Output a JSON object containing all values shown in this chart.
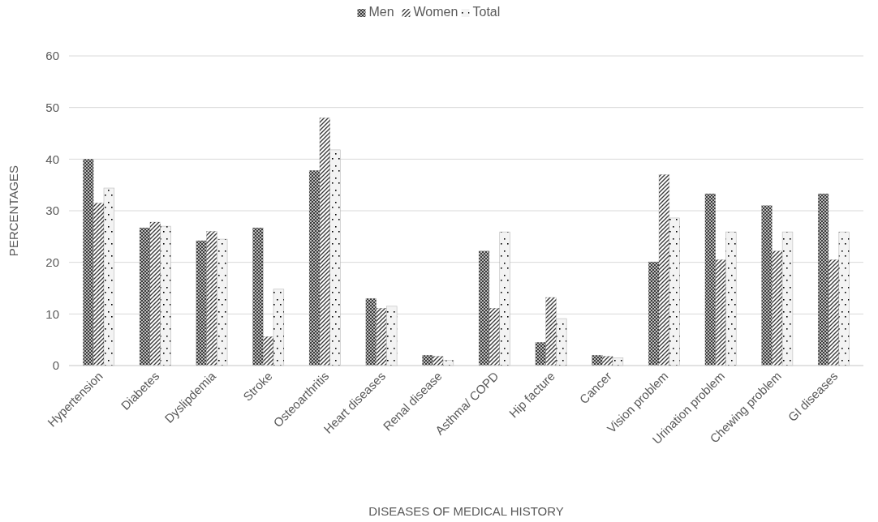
{
  "chart_data": {
    "type": "bar",
    "xlabel": "DISEASES OF MEDICAL HISTORY",
    "ylabel": "PERCENTAGES",
    "categories": [
      "Hypertension",
      "Diabetes",
      "Dyslipdemia",
      "Stroke",
      "Osteoarthritis",
      "Heart diseases",
      "Renal disease",
      "Asthma/ COPD",
      "Hip facture",
      "Cancer",
      "Vision problem",
      "Urination problem",
      "Chewing problem",
      "GI diseases"
    ],
    "series": [
      {
        "name": "Men",
        "color": "#3a3a3a",
        "values": [
          40,
          26.7,
          24.2,
          26.7,
          37.8,
          13,
          2,
          22.2,
          4.5,
          2,
          20.1,
          33.3,
          31,
          33.3
        ]
      },
      {
        "name": "Women",
        "color": "#3a3a3a",
        "values": [
          31.5,
          27.8,
          26,
          5.6,
          48,
          11.1,
          1.8,
          11.1,
          13.2,
          1.8,
          37,
          20.5,
          22.2,
          20.5
        ]
      },
      {
        "name": "Total",
        "color": "#000000",
        "values": [
          34.4,
          27,
          24.5,
          14.8,
          41.8,
          11.5,
          1,
          25.9,
          9.1,
          1.5,
          28.6,
          25.9,
          25.9,
          25.9
        ]
      }
    ],
    "ylim": [
      0,
      60
    ],
    "yticks": [
      0,
      10,
      20,
      30,
      40,
      50,
      60
    ],
    "grid": "y",
    "legend": "top"
  }
}
